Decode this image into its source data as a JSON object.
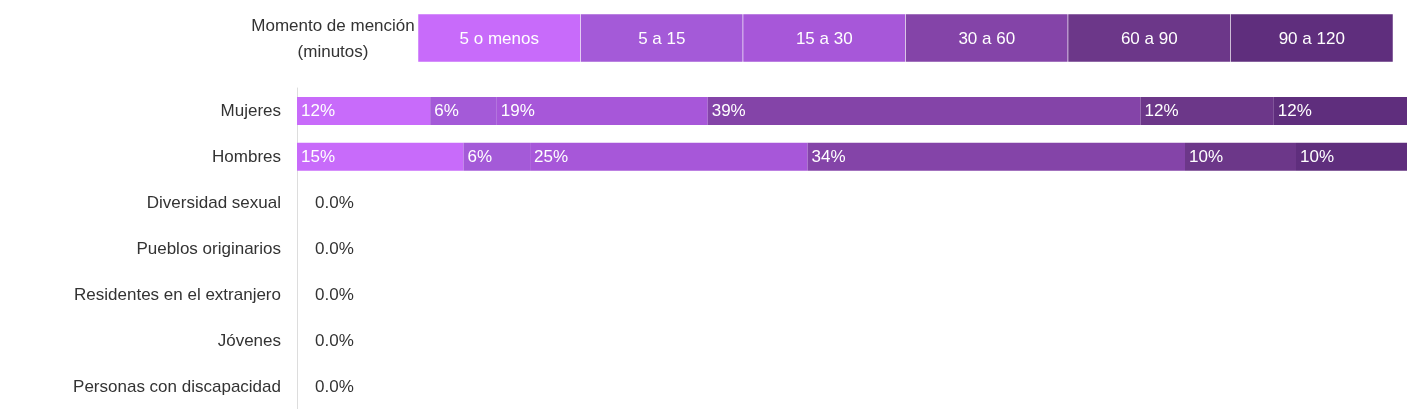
{
  "chart_data": {
    "type": "bar",
    "orientation": "horizontal",
    "stacked": true,
    "legend_title": "Momento de mención\n(minutos)",
    "legend": "top",
    "tick_labels": "y",
    "xlim": [
      0,
      100
    ],
    "grid": false,
    "categories": [
      "Mujeres",
      "Hombres",
      "Diversidad sexual",
      "Pueblos originarios",
      "Residentes en el extranjero",
      "Jóvenes",
      "Personas con discapacidad"
    ],
    "series": [
      {
        "name": "5 o menos",
        "color": "#c86bfa",
        "values": [
          12,
          15,
          0,
          0,
          0,
          0,
          0
        ],
        "value_labels": [
          "12%",
          "15%",
          "0.0%",
          "0.0%",
          "0.0%",
          "0.0%",
          "0.0%"
        ]
      },
      {
        "name": "5 a 15",
        "color": "#a45ad8",
        "values": [
          6,
          6,
          null,
          null,
          null,
          null,
          null
        ],
        "value_labels": [
          "6%",
          "6%",
          null,
          null,
          null,
          null,
          null
        ]
      },
      {
        "name": "15 a 30",
        "color": "#a757d9",
        "values": [
          19,
          25,
          null,
          null,
          null,
          null,
          null
        ],
        "value_labels": [
          "19%",
          "25%",
          null,
          null,
          null,
          null,
          null
        ]
      },
      {
        "name": "30 a 60",
        "color": "#8444a8",
        "values": [
          39,
          34,
          null,
          null,
          null,
          null,
          null
        ],
        "value_labels": [
          "39%",
          "34%",
          null,
          null,
          null,
          null,
          null
        ]
      },
      {
        "name": "60 a 90",
        "color": "#6c3789",
        "values": [
          12,
          10,
          null,
          null,
          null,
          null,
          null
        ],
        "value_labels": [
          "12%",
          "10%",
          null,
          null,
          null,
          null,
          null
        ]
      },
      {
        "name": "90 a 120",
        "color": "#5f2e7d",
        "values": [
          12,
          10,
          null,
          null,
          null,
          null,
          null
        ],
        "value_labels": [
          "12%",
          "10%",
          null,
          null,
          null,
          null,
          null
        ]
      }
    ]
  }
}
